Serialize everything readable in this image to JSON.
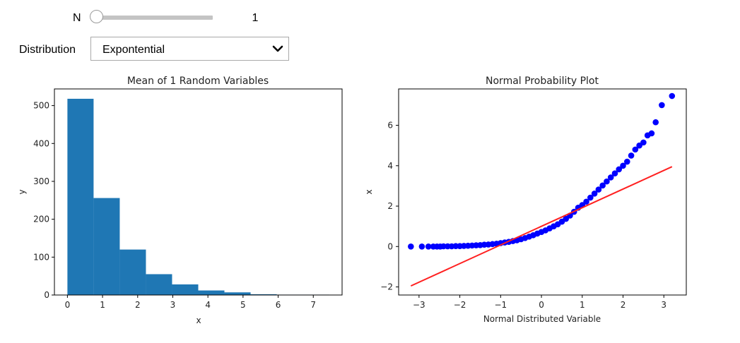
{
  "controls": {
    "n_label": "N",
    "n_value": "1",
    "n_slider_fraction": 0,
    "distribution_label": "Distribution",
    "distribution_value": "Expontential"
  },
  "chart_data": [
    {
      "type": "bar",
      "title": "Mean of 1 Random Variables",
      "xlabel": "x",
      "ylabel": "y",
      "bin_edges": [
        0,
        0.745,
        1.49,
        2.235,
        2.98,
        3.725,
        4.47,
        5.215,
        5.96,
        6.705,
        7.45
      ],
      "values": [
        518,
        256,
        120,
        55,
        28,
        12,
        7,
        2,
        1,
        1
      ],
      "color": "#1f77b4",
      "xlim": [
        -0.37,
        7.82
      ],
      "ylim": [
        0,
        544
      ],
      "xticks": [
        0,
        1,
        2,
        3,
        4,
        5,
        6,
        7
      ],
      "yticks": [
        0,
        100,
        200,
        300,
        400,
        500
      ]
    },
    {
      "type": "scatter",
      "title": "Normal Probability Plot",
      "xlabel": "Normal Distributed Variable",
      "ylabel": "x",
      "xlim": [
        -3.5,
        3.55
      ],
      "ylim": [
        -2.4,
        7.8
      ],
      "xticks": [
        -3,
        -2,
        -1,
        0,
        1,
        2,
        3
      ],
      "yticks": [
        -2,
        0,
        2,
        4,
        6
      ],
      "point_color": "#0000ff",
      "line_color": "#ff2020",
      "fit_line": {
        "x": [
          -3.2,
          3.2
        ],
        "y": [
          -1.95,
          3.95
        ]
      },
      "points": [
        [
          -3.2,
          0.0
        ],
        [
          -2.93,
          0.0
        ],
        [
          -2.77,
          0.0
        ],
        [
          -2.65,
          0.0
        ],
        [
          -2.56,
          0.0
        ],
        [
          -2.48,
          0.0
        ],
        [
          -2.4,
          0.01
        ],
        [
          -2.3,
          0.01
        ],
        [
          -2.2,
          0.01
        ],
        [
          -2.1,
          0.02
        ],
        [
          -2.0,
          0.02
        ],
        [
          -1.9,
          0.03
        ],
        [
          -1.8,
          0.04
        ],
        [
          -1.7,
          0.05
        ],
        [
          -1.6,
          0.06
        ],
        [
          -1.5,
          0.07
        ],
        [
          -1.4,
          0.09
        ],
        [
          -1.3,
          0.1
        ],
        [
          -1.2,
          0.12
        ],
        [
          -1.1,
          0.14
        ],
        [
          -1.0,
          0.17
        ],
        [
          -0.9,
          0.2
        ],
        [
          -0.8,
          0.23
        ],
        [
          -0.7,
          0.27
        ],
        [
          -0.6,
          0.31
        ],
        [
          -0.5,
          0.36
        ],
        [
          -0.4,
          0.42
        ],
        [
          -0.3,
          0.49
        ],
        [
          -0.2,
          0.56
        ],
        [
          -0.1,
          0.64
        ],
        [
          0.0,
          0.72
        ],
        [
          0.1,
          0.8
        ],
        [
          0.2,
          0.9
        ],
        [
          0.3,
          1.0
        ],
        [
          0.4,
          1.1
        ],
        [
          0.5,
          1.23
        ],
        [
          0.6,
          1.37
        ],
        [
          0.7,
          1.53
        ],
        [
          0.8,
          1.72
        ],
        [
          0.9,
          1.92
        ],
        [
          1.0,
          2.05
        ],
        [
          1.1,
          2.22
        ],
        [
          1.2,
          2.42
        ],
        [
          1.3,
          2.62
        ],
        [
          1.4,
          2.82
        ],
        [
          1.5,
          3.02
        ],
        [
          1.6,
          3.22
        ],
        [
          1.7,
          3.42
        ],
        [
          1.8,
          3.62
        ],
        [
          1.9,
          3.82
        ],
        [
          2.0,
          4.0
        ],
        [
          2.1,
          4.2
        ],
        [
          2.2,
          4.5
        ],
        [
          2.3,
          4.8
        ],
        [
          2.4,
          5.0
        ],
        [
          2.5,
          5.15
        ],
        [
          2.6,
          5.5
        ],
        [
          2.7,
          5.6
        ],
        [
          2.8,
          6.15
        ],
        [
          2.95,
          7.0
        ],
        [
          3.2,
          7.45
        ]
      ]
    }
  ]
}
